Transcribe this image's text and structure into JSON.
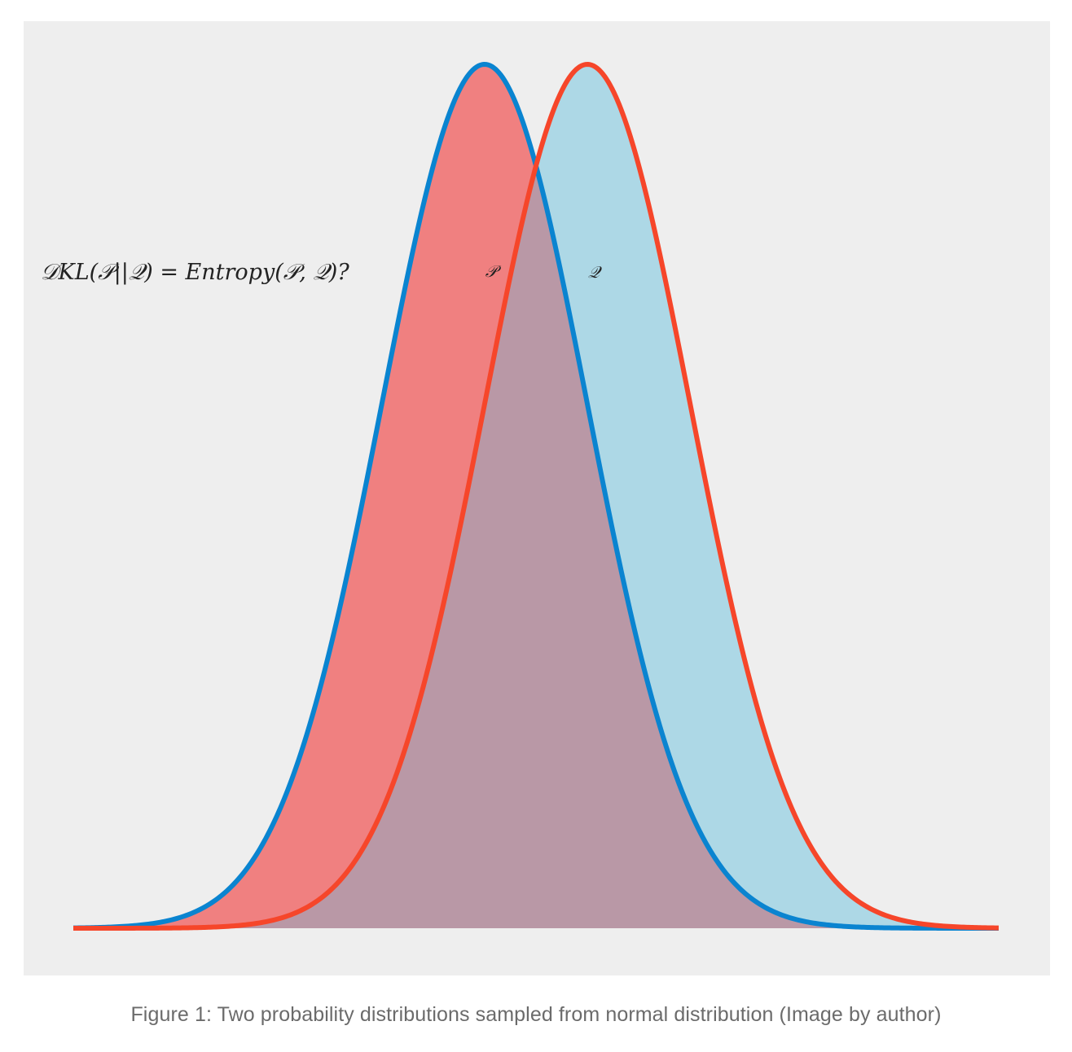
{
  "caption": "Figure 1: Two probability distributions sampled from normal distribution (Image by author)",
  "chart_data": {
    "type": "area",
    "grid": false,
    "axes_visible": false,
    "x_range": [
      -4.5,
      4.5
    ],
    "y_range": [
      0,
      1
    ],
    "annotation": "𝒟KL(𝒫||𝒬) = Entropy(𝒫, 𝒬)?",
    "series": [
      {
        "name": "𝒫",
        "distribution": "normal",
        "mean": -0.5,
        "std": 1.0,
        "line_color": "#0a84d0",
        "fill_color": "#f08080"
      },
      {
        "name": "𝒬",
        "distribution": "normal",
        "mean": 0.5,
        "std": 1.0,
        "line_color": "#f6462a",
        "fill_color": "#add8e6"
      }
    ]
  },
  "colors": {
    "background": "#eeeeee",
    "overlap_fill": "#b998a6"
  }
}
